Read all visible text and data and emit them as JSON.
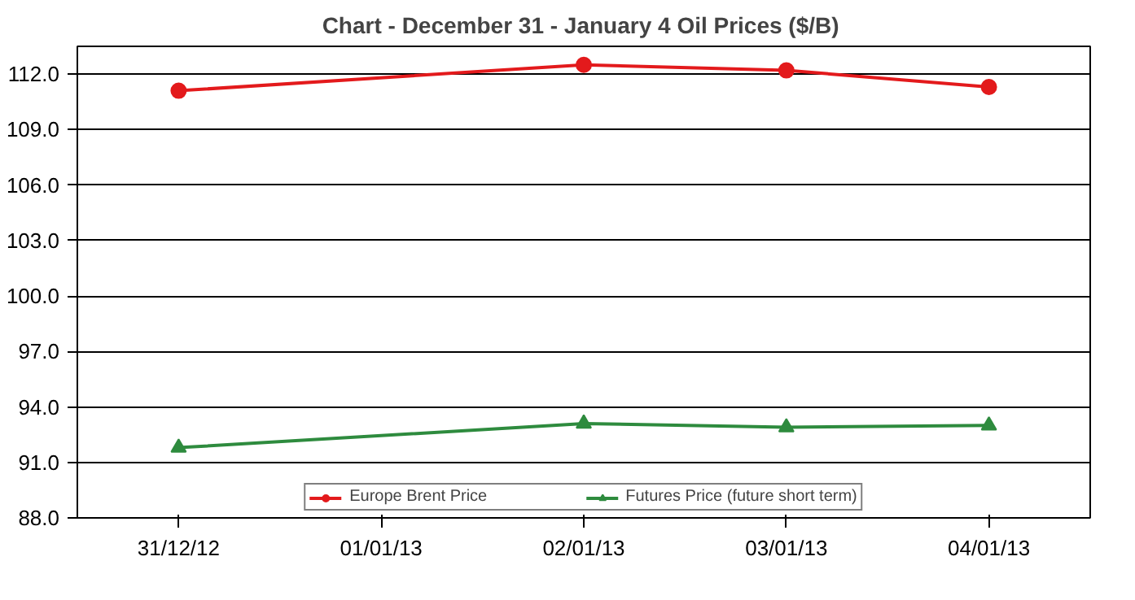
{
  "chart_data": {
    "type": "line",
    "title": "Chart - December 31 - January 4  Oil Prices ($/B)",
    "categories": [
      "31/12/12",
      "01/01/13",
      "02/01/13",
      "03/01/13",
      "04/01/13"
    ],
    "series": [
      {
        "name": "Europe Brent Price",
        "color": "#e31a1c",
        "marker": "circle",
        "values": [
          111.1,
          null,
          112.5,
          112.2,
          111.3
        ]
      },
      {
        "name": "Futures Price (future short term)",
        "color": "#2e8b3e",
        "marker": "triangle",
        "values": [
          91.8,
          null,
          93.1,
          92.9,
          93.0
        ]
      }
    ],
    "ylim": [
      88,
      113.5
    ],
    "yticks": [
      {
        "value": 88,
        "label": "88.0"
      },
      {
        "value": 91,
        "label": "91.0"
      },
      {
        "value": 94,
        "label": "94.0"
      },
      {
        "value": 97,
        "label": "97.0"
      },
      {
        "value": 100,
        "label": "100.0"
      },
      {
        "value": 103,
        "label": "103.0"
      },
      {
        "value": 106,
        "label": "106.0"
      },
      {
        "value": 109,
        "label": "109.0"
      },
      {
        "value": 112,
        "label": "112.0"
      }
    ],
    "grid": "y",
    "legend": "bottom",
    "line_style": "solid"
  }
}
